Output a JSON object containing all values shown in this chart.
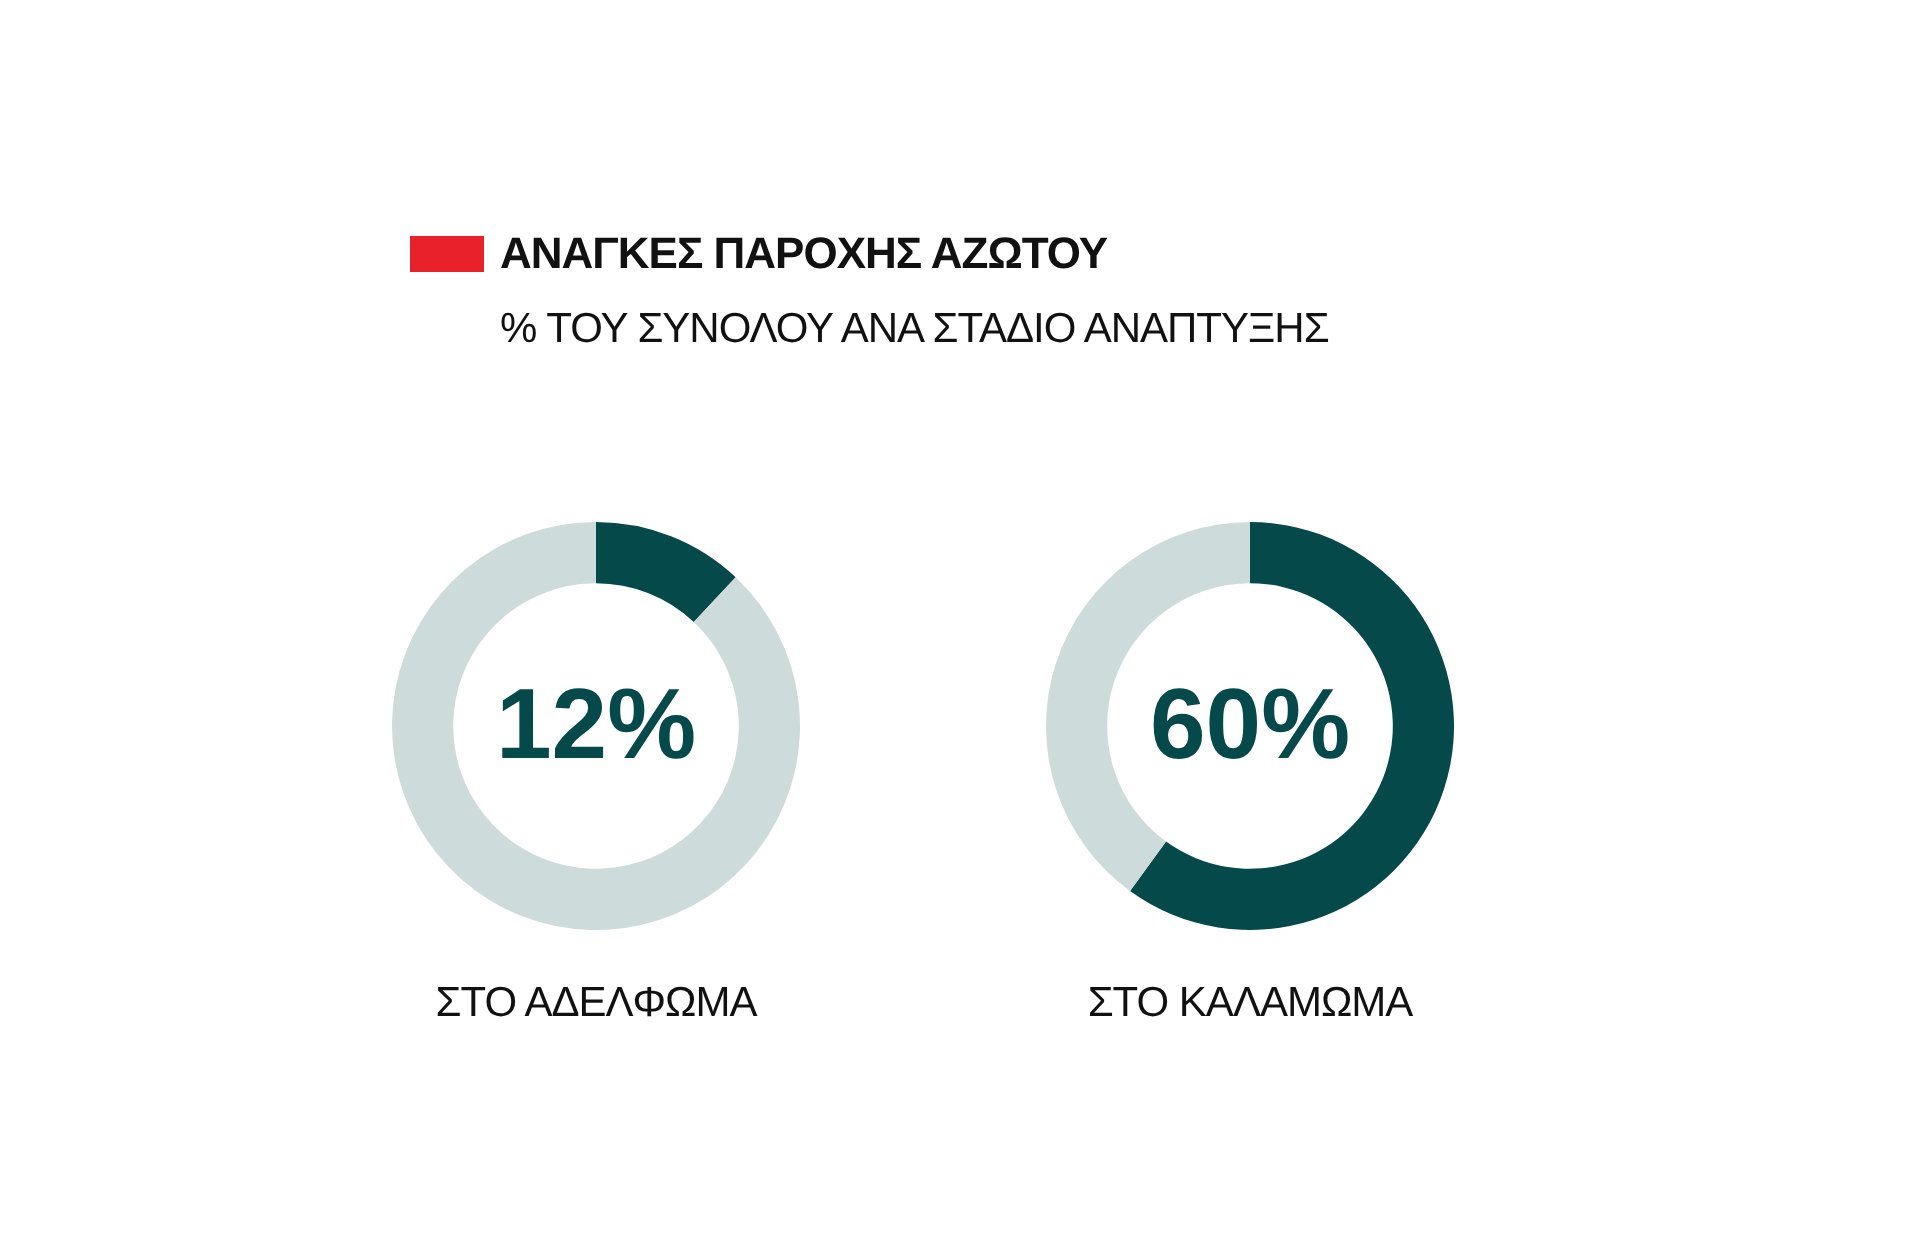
{
  "chart_data": [
    {
      "type": "donut",
      "title": "ΑΝΑΓΚΕΣ ΠΑΡΟΧΗΣ ΑΖΩΤΟΥ",
      "subtitle": "% ΤΟΥ ΣΥΝΟΛΟΥ ΑΝΑ ΣΤΑΔΙΟ ΑΝΑΠΤΥΞΗΣ",
      "categories": [
        null,
        null
      ],
      "values": [
        12,
        88
      ],
      "colors": [
        "#05494b",
        "#cddbdb"
      ],
      "value_labels": [
        "12%",
        null
      ],
      "xlabel": "ΣΤΟ ΑΔΕΛΦΩΜΑ"
    },
    {
      "type": "donut",
      "categories": [
        null,
        null
      ],
      "values": [
        60,
        40
      ],
      "colors": [
        "#05494b",
        "#cddbdb"
      ],
      "value_labels": [
        "60%",
        null
      ],
      "xlabel": "ΣΤΟ ΚΑΛΑΜΩΜΑ"
    }
  ]
}
